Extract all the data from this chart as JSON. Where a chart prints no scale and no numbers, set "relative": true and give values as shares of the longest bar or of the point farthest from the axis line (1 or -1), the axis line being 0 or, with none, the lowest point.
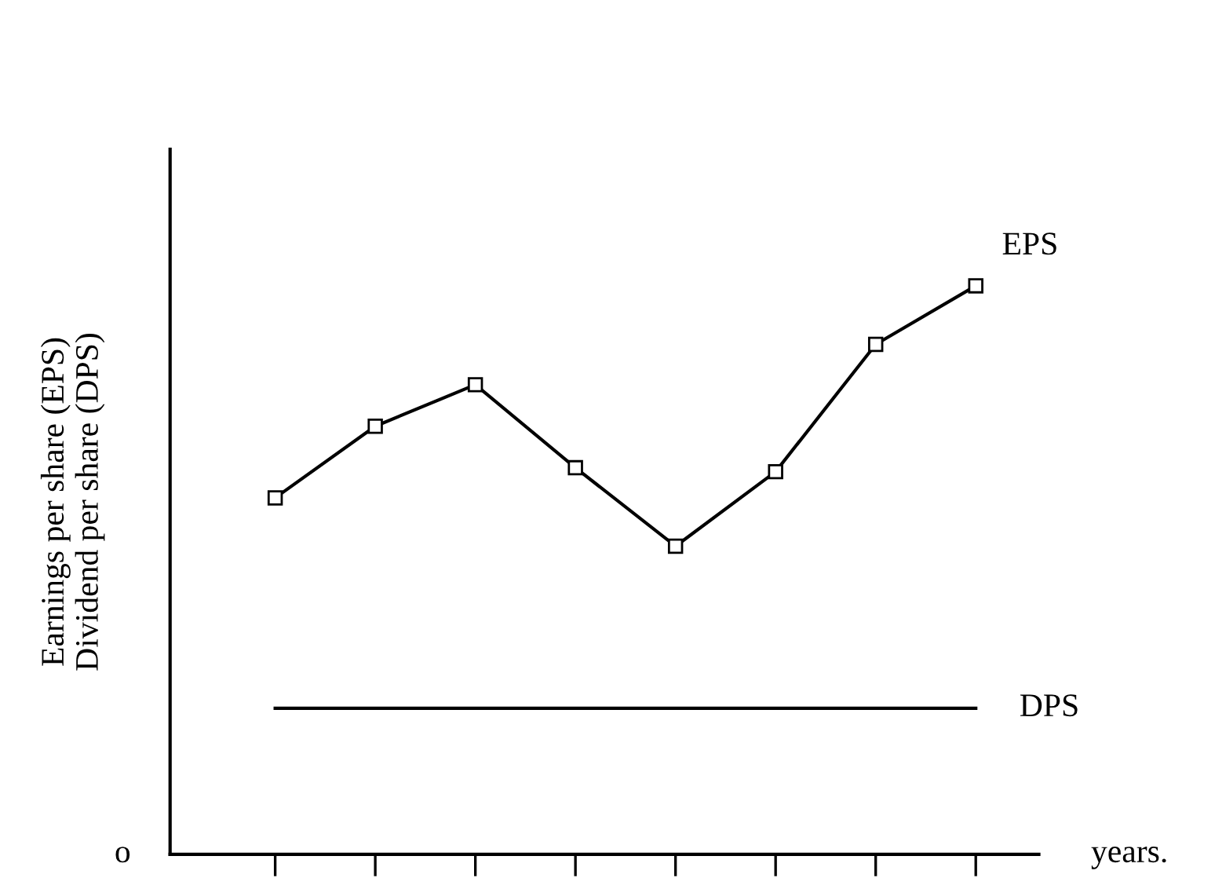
{
  "chart_data": {
    "type": "line",
    "relative": true,
    "xlabel": "years.",
    "ylabel": "Earnings per share (EPS)\nDividend per share (DPS)",
    "categories": [
      null,
      null,
      null,
      null,
      null,
      null,
      null,
      null
    ],
    "series": [
      {
        "name": "EPS",
        "color": "#000000",
        "marker": "square",
        "values": [
          0.627,
          0.753,
          0.826,
          0.68,
          0.542,
          0.673,
          0.897,
          1.0
        ]
      },
      {
        "name": "DPS",
        "color": "#000000",
        "marker": "none",
        "values": [
          0.257,
          0.257,
          0.257,
          0.257,
          0.257,
          0.257,
          0.257,
          0.257
        ]
      }
    ],
    "annotations": [
      "o"
    ],
    "grid": false,
    "legend": false
  }
}
